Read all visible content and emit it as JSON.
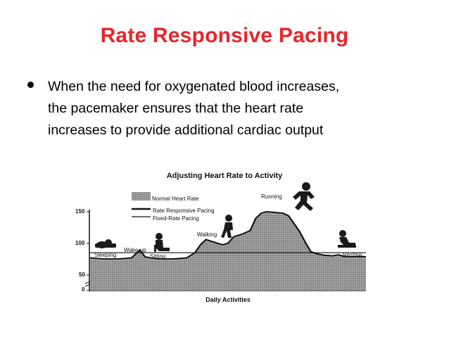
{
  "slide": {
    "title": "Rate Responsive Pacing",
    "bullet_lines": [
      "When the need for oxygenated blood increases,",
      "the pacemaker ensures that the heart rate",
      "increases to provide additional cardiac output"
    ],
    "title_color": "#e8262b"
  },
  "figure": {
    "title": "Adjusting Heart Rate to Activity",
    "xlabel": "Daily Activities",
    "legend": [
      {
        "label": "Normal Heart Rate",
        "swatch": "shaded-area"
      },
      {
        "label": "Rate Responsive Pacing",
        "swatch": "thick-line"
      },
      {
        "label": "Fixed-Rate Pacing",
        "swatch": "thin-line"
      }
    ],
    "activities": [
      "Sleeping",
      "Wake-up",
      "Sitting",
      "Walking",
      "Running",
      "Resting"
    ],
    "icons": [
      "sleeping-person-icon",
      "sitting-person-icon",
      "walking-person-icon",
      "running-person-icon",
      "resting-person-icon"
    ]
  },
  "chart_data": {
    "type": "area",
    "title": "Adjusting Heart Rate to Activity",
    "xlabel": "Daily Activities",
    "ylabel": "",
    "yticks": [
      "150",
      "100",
      "50",
      "0"
    ],
    "ylim": [
      0,
      160
    ],
    "x": [
      0,
      5,
      10,
      15,
      18,
      20,
      22,
      25,
      30,
      35,
      38,
      40,
      42,
      45,
      48,
      50,
      52,
      55,
      58,
      60,
      62,
      64,
      66,
      68,
      70,
      72,
      74,
      76,
      78,
      80,
      82,
      85,
      88,
      90,
      92,
      95,
      98,
      100
    ],
    "series": [
      {
        "name": "Normal Heart Rate",
        "values": [
          60,
          58,
          58,
          60,
          75,
          62,
          60,
          58,
          58,
          60,
          70,
          85,
          95,
          90,
          85,
          88,
          100,
          105,
          112,
          135,
          145,
          148,
          147,
          146,
          145,
          140,
          125,
          110,
          90,
          72,
          68,
          65,
          64,
          66,
          63,
          62,
          63,
          62
        ]
      },
      {
        "name": "Rate Responsive Pacing",
        "values": [
          62,
          60,
          60,
          62,
          77,
          64,
          62,
          60,
          60,
          62,
          72,
          87,
          97,
          92,
          87,
          90,
          102,
          107,
          114,
          137,
          147,
          150,
          149,
          148,
          147,
          142,
          127,
          112,
          92,
          74,
          70,
          67,
          66,
          68,
          65,
          64,
          65,
          64
        ]
      },
      {
        "name": "Fixed-Rate Pacing",
        "values": [
          72,
          72,
          72,
          72,
          72,
          72,
          72,
          72,
          72,
          72,
          72,
          72,
          72,
          72,
          72,
          72,
          72,
          72,
          72,
          72,
          72,
          72,
          72,
          72,
          72,
          72,
          72,
          72,
          72,
          72,
          72,
          72,
          72,
          72,
          72,
          72,
          72,
          72
        ]
      }
    ],
    "annotations": [
      "Sleeping",
      "Wake-up",
      "Sitting",
      "Walking",
      "Running",
      "Resting"
    ],
    "grid": false,
    "legend_position": "top-left"
  }
}
